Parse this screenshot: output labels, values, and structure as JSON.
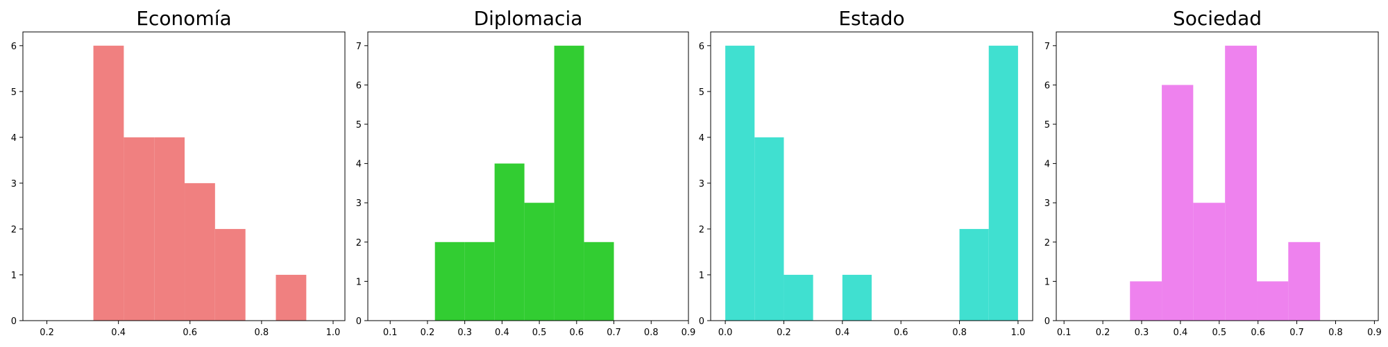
{
  "chart_data": [
    {
      "type": "bar",
      "title": "Economía",
      "color": "#F08080",
      "xlim": [
        0.133,
        1.033
      ],
      "ylim": [
        0,
        6.3
      ],
      "xticks": [
        "0.2",
        "0.4",
        "0.6",
        "0.8",
        "1.0"
      ],
      "xtick_values": [
        0.2,
        0.4,
        0.6,
        0.8,
        1.0
      ],
      "yticks": [
        "0",
        "1",
        "2",
        "3",
        "4",
        "5",
        "6"
      ],
      "ytick_values": [
        0,
        1,
        2,
        3,
        4,
        5,
        6
      ],
      "bins": [
        0.33,
        0.415,
        0.5,
        0.585,
        0.67,
        0.755,
        0.84,
        0.925
      ],
      "counts": [
        6,
        4,
        4,
        3,
        2,
        0,
        1
      ]
    },
    {
      "type": "bar",
      "title": "Diplomacia",
      "color": "#32CD32",
      "xlim": [
        0.04,
        0.9
      ],
      "ylim": [
        0,
        7.35
      ],
      "xticks": [
        "0.1",
        "0.2",
        "0.3",
        "0.4",
        "0.5",
        "0.6",
        "0.7",
        "0.8",
        "0.9"
      ],
      "xtick_values": [
        0.1,
        0.2,
        0.3,
        0.4,
        0.5,
        0.6,
        0.7,
        0.8,
        0.9
      ],
      "yticks": [
        "0",
        "1",
        "2",
        "3",
        "4",
        "5",
        "6",
        "7"
      ],
      "ytick_values": [
        0,
        1,
        2,
        3,
        4,
        5,
        6,
        7
      ],
      "bins": [
        0.22,
        0.3,
        0.38,
        0.46,
        0.54,
        0.62,
        0.7
      ],
      "counts": [
        2,
        2,
        4,
        3,
        7,
        2
      ]
    },
    {
      "type": "bar",
      "title": "Estado",
      "color": "#40E0D0",
      "xlim": [
        -0.05,
        1.05
      ],
      "ylim": [
        0,
        6.3
      ],
      "xticks": [
        "0.0",
        "0.2",
        "0.4",
        "0.6",
        "0.8",
        "1.0"
      ],
      "xtick_values": [
        0.0,
        0.2,
        0.4,
        0.6,
        0.8,
        1.0
      ],
      "yticks": [
        "0",
        "1",
        "2",
        "3",
        "4",
        "5",
        "6"
      ],
      "ytick_values": [
        0,
        1,
        2,
        3,
        4,
        5,
        6
      ],
      "bins": [
        0.0,
        0.1,
        0.2,
        0.3,
        0.4,
        0.5,
        0.6,
        0.7,
        0.8,
        0.9,
        1.0
      ],
      "counts": [
        6,
        4,
        1,
        0,
        1,
        0,
        0,
        0,
        2,
        6
      ]
    },
    {
      "type": "bar",
      "title": "Sociedad",
      "color": "#EE82EE",
      "xlim": [
        0.08,
        0.91
      ],
      "ylim": [
        0,
        7.35
      ],
      "xticks": [
        "0.1",
        "0.2",
        "0.3",
        "0.4",
        "0.5",
        "0.6",
        "0.7",
        "0.8",
        "0.9"
      ],
      "xtick_values": [
        0.1,
        0.2,
        0.3,
        0.4,
        0.5,
        0.6,
        0.7,
        0.8,
        0.9
      ],
      "yticks": [
        "0",
        "1",
        "2",
        "3",
        "4",
        "5",
        "6",
        "7"
      ],
      "ytick_values": [
        0,
        1,
        2,
        3,
        4,
        5,
        6,
        7
      ],
      "bins": [
        0.27,
        0.352,
        0.433,
        0.515,
        0.597,
        0.678,
        0.76
      ],
      "counts": [
        1,
        6,
        3,
        7,
        1,
        2
      ]
    }
  ]
}
